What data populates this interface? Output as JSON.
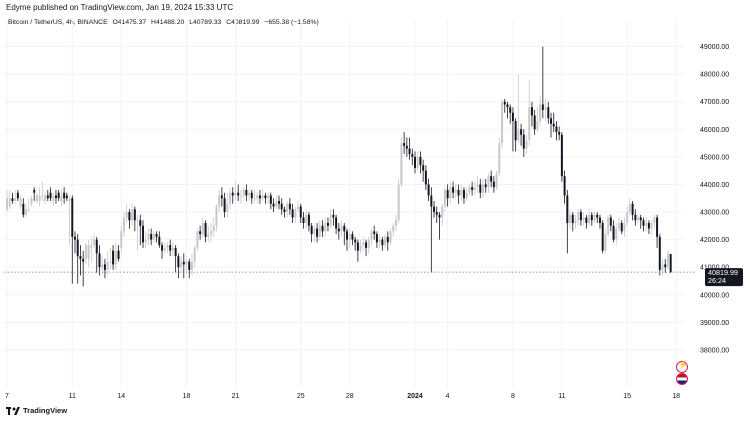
{
  "header": {
    "published": "Edyme published on TradingView.com, Jan 19, 2024 15:33 UTC"
  },
  "legend": {
    "symbol": "Bitcoin / TetherUS, 4h, BINANCE",
    "open": "O41475.37",
    "high": "H41488.20",
    "low": "L40789.33",
    "close": "C40819.99",
    "change": "−655.38 (−1.58%)"
  },
  "price_tag": {
    "price": "40819.99",
    "countdown": "26:24",
    "color": "#131722"
  },
  "footer": {
    "brand": "TradingView"
  },
  "icons": [
    "tradingview-logo-icon",
    "lightning-event-icon",
    "us-flag-event-icon"
  ],
  "chart_data": {
    "type": "candlestick",
    "up_color": "#c8c8c8",
    "down_color": "#131722",
    "last_price_line_color": "#787b86",
    "ylim": [
      36800,
      49600
    ],
    "y_ticks": [
      "49000.00",
      "48000.00",
      "47000.00",
      "46000.00",
      "45000.00",
      "44000.00",
      "43000.00",
      "42000.00",
      "41000.00",
      "40000.00",
      "39000.00",
      "38000.00"
    ],
    "x_ticks": [
      "7",
      "11",
      "14",
      "18",
      "21",
      "25",
      "28",
      "2024",
      "4",
      "8",
      "11",
      "15",
      "18"
    ],
    "x_tick_index": [
      0,
      24,
      42,
      66,
      84,
      108,
      126,
      150,
      162,
      186,
      204,
      228,
      246
    ],
    "candles": [
      [
        43100,
        43500,
        43800,
        43000
      ],
      [
        43200,
        43500,
        43800,
        43100
      ],
      [
        43500,
        43400,
        43700,
        43300
      ],
      [
        43400,
        43500,
        43800,
        43300
      ],
      [
        43700,
        43500,
        43800,
        43400
      ],
      [
        43200,
        43500,
        43600,
        43100
      ],
      [
        43300,
        42900,
        43500,
        42800
      ],
      [
        42900,
        43100,
        43300,
        42800
      ],
      [
        43100,
        43100,
        43500,
        43000
      ],
      [
        43300,
        43500,
        43600,
        43200
      ],
      [
        43800,
        43700,
        43900,
        43400
      ],
      [
        43400,
        43600,
        43700,
        43300
      ],
      [
        43400,
        43600,
        43900,
        43200
      ],
      [
        43600,
        43600,
        44100,
        43400
      ],
      [
        43400,
        43600,
        43700,
        43300
      ],
      [
        43600,
        43500,
        43800,
        43400
      ],
      [
        43700,
        43500,
        43900,
        43400
      ],
      [
        43400,
        43600,
        43700,
        43200
      ],
      [
        43600,
        43500,
        43800,
        43300
      ],
      [
        43700,
        43500,
        43800,
        43400
      ],
      [
        43400,
        43600,
        43800,
        43200
      ],
      [
        43700,
        43500,
        43900,
        43300
      ],
      [
        43600,
        43500,
        43700,
        43400
      ],
      [
        43400,
        43500,
        43600,
        41800
      ],
      [
        43500,
        42100,
        43600,
        40400
      ],
      [
        42100,
        42000,
        42300,
        41500
      ],
      [
        42000,
        41400,
        42200,
        40400
      ],
      [
        41400,
        41300,
        41800,
        40700
      ],
      [
        41300,
        41200,
        41600,
        40300
      ],
      [
        41300,
        41800,
        41900,
        41100
      ],
      [
        41300,
        41800,
        42000,
        41000
      ],
      [
        41700,
        41800,
        42100,
        41200
      ],
      [
        41800,
        42000,
        42200,
        41700
      ],
      [
        42000,
        41500,
        42100,
        40800
      ],
      [
        41500,
        41000,
        41800,
        40700
      ],
      [
        41000,
        41100,
        41400,
        40700
      ],
      [
        41100,
        40900,
        41300,
        40600
      ],
      [
        40900,
        41200,
        41600,
        40700
      ],
      [
        41200,
        41200,
        41700,
        40900
      ],
      [
        41600,
        41100,
        41800,
        40900
      ],
      [
        41100,
        41600,
        41900,
        40900
      ],
      [
        41600,
        41300,
        41800,
        41200
      ],
      [
        41700,
        42300,
        42500,
        41500
      ],
      [
        42300,
        42800,
        43000,
        42100
      ],
      [
        42800,
        43000,
        43300,
        42600
      ],
      [
        43000,
        42700,
        43100,
        42400
      ],
      [
        42700,
        43100,
        43300,
        42500
      ],
      [
        43100,
        42700,
        43200,
        42300
      ],
      [
        42700,
        42700,
        42900,
        41600
      ],
      [
        42700,
        42500,
        42900,
        41800
      ],
      [
        42500,
        41900,
        42700,
        41700
      ],
      [
        41900,
        42000,
        42300,
        41700
      ],
      [
        42000,
        42200,
        42400,
        41800
      ],
      [
        42200,
        42000,
        42400,
        41800
      ],
      [
        42000,
        42200,
        42300,
        41900
      ],
      [
        42200,
        42100,
        42300,
        41900
      ],
      [
        42100,
        41800,
        42300,
        41700
      ],
      [
        41800,
        41600,
        41900,
        41300
      ],
      [
        41600,
        41700,
        41900,
        41500
      ],
      [
        41700,
        41800,
        41900,
        41500
      ],
      [
        41800,
        41600,
        42000,
        41400
      ],
      [
        41600,
        41700,
        41900,
        41400
      ],
      [
        41700,
        41400,
        41800,
        40800
      ],
      [
        41400,
        41000,
        41500,
        40600
      ],
      [
        41000,
        41200,
        41400,
        40800
      ],
      [
        41200,
        41100,
        41500,
        40600
      ],
      [
        41100,
        41200,
        41300,
        40800
      ],
      [
        41200,
        40900,
        41300,
        40600
      ],
      [
        40900,
        41200,
        41500,
        40700
      ],
      [
        41200,
        41700,
        41800,
        41000
      ],
      [
        41700,
        42300,
        42400,
        41600
      ],
      [
        42300,
        42200,
        42500,
        42000
      ],
      [
        42200,
        42600,
        42800,
        42100
      ],
      [
        42600,
        42100,
        42700,
        41900
      ],
      [
        42100,
        42200,
        42500,
        41900
      ],
      [
        42200,
        42300,
        42600,
        41900
      ],
      [
        42300,
        42500,
        42800,
        42100
      ],
      [
        42500,
        43200,
        43300,
        42300
      ],
      [
        43200,
        43600,
        43800,
        43000
      ],
      [
        43600,
        43500,
        43900,
        43200
      ],
      [
        43500,
        43000,
        43700,
        42800
      ],
      [
        43000,
        43300,
        43700,
        42800
      ],
      [
        43300,
        43700,
        43900,
        43100
      ],
      [
        43700,
        43600,
        43900,
        43300
      ],
      [
        43600,
        43700,
        44100,
        43400
      ],
      [
        43700,
        43600,
        44000,
        43400
      ],
      [
        43600,
        43600,
        43800,
        43300
      ],
      [
        43600,
        43800,
        43900,
        43500
      ],
      [
        43800,
        43600,
        44000,
        43400
      ],
      [
        43600,
        43700,
        43800,
        43400
      ],
      [
        43700,
        43500,
        43800,
        43300
      ],
      [
        43500,
        43500,
        43800,
        43300
      ],
      [
        43500,
        43600,
        43700,
        43300
      ],
      [
        43600,
        43500,
        43800,
        43300
      ],
      [
        43500,
        43600,
        43800,
        43400
      ],
      [
        43600,
        43500,
        43700,
        43300
      ],
      [
        43500,
        43600,
        43700,
        43300
      ],
      [
        43600,
        43300,
        43700,
        43100
      ],
      [
        43300,
        43200,
        43500,
        43000
      ],
      [
        43200,
        43400,
        43600,
        43100
      ],
      [
        43400,
        43300,
        43600,
        43100
      ],
      [
        43300,
        43100,
        43500,
        42900
      ],
      [
        43100,
        43000,
        43200,
        42800
      ],
      [
        43000,
        43300,
        43400,
        42800
      ],
      [
        43300,
        43100,
        43500,
        42900
      ],
      [
        43100,
        42800,
        43300,
        42600
      ],
      [
        42800,
        43100,
        43200,
        42600
      ],
      [
        43100,
        43200,
        43400,
        43000
      ],
      [
        43200,
        42800,
        43300,
        42600
      ],
      [
        42800,
        42600,
        43000,
        42400
      ],
      [
        42600,
        42900,
        43100,
        42400
      ],
      [
        42900,
        42500,
        43000,
        42300
      ],
      [
        42500,
        42200,
        42600,
        41900
      ],
      [
        42200,
        42400,
        42500,
        41900
      ],
      [
        42400,
        42100,
        42600,
        41900
      ],
      [
        42100,
        42500,
        42700,
        42000
      ],
      [
        42500,
        42300,
        42700,
        42100
      ],
      [
        42300,
        42600,
        42800,
        42100
      ],
      [
        42600,
        42500,
        42800,
        42300
      ],
      [
        42500,
        42900,
        43100,
        42400
      ],
      [
        42900,
        42800,
        43100,
        42500
      ],
      [
        42800,
        42400,
        42900,
        42200
      ],
      [
        42400,
        42300,
        42600,
        42000
      ],
      [
        42300,
        42500,
        42700,
        42100
      ],
      [
        42500,
        42300,
        42600,
        41800
      ],
      [
        42300,
        42000,
        42400,
        41600
      ],
      [
        42000,
        42200,
        42400,
        41700
      ],
      [
        42200,
        42000,
        42300,
        41800
      ],
      [
        42000,
        41900,
        42100,
        41600
      ],
      [
        41900,
        41600,
        42000,
        41200
      ],
      [
        41600,
        41800,
        42000,
        41500
      ],
      [
        41800,
        41900,
        42100,
        41600
      ],
      [
        41900,
        41700,
        42000,
        41400
      ],
      [
        41700,
        42000,
        42100,
        41500
      ],
      [
        42000,
        42300,
        42400,
        41800
      ],
      [
        42300,
        42200,
        42500,
        42000
      ],
      [
        42200,
        41900,
        42300,
        41700
      ],
      [
        41900,
        42000,
        42200,
        41700
      ],
      [
        42000,
        41800,
        42100,
        41600
      ],
      [
        41800,
        42100,
        42200,
        41700
      ],
      [
        42100,
        41900,
        42300,
        41600
      ],
      [
        41900,
        42300,
        42400,
        41800
      ],
      [
        42300,
        42500,
        42600,
        42100
      ],
      [
        42500,
        42700,
        42900,
        42300
      ],
      [
        42700,
        44000,
        44200,
        42600
      ],
      [
        44000,
        45500,
        45700,
        43900
      ],
      [
        45500,
        45400,
        45900,
        45100
      ],
      [
        45400,
        45300,
        45700,
        45000
      ],
      [
        45300,
        45100,
        45700,
        44900
      ],
      [
        45100,
        45000,
        45300,
        44700
      ],
      [
        45000,
        44600,
        45200,
        44400
      ],
      [
        44600,
        45000,
        45200,
        44500
      ],
      [
        45000,
        44700,
        45200,
        44400
      ],
      [
        44700,
        44500,
        44900,
        44100
      ],
      [
        44500,
        44000,
        44700,
        43800
      ],
      [
        44000,
        43600,
        44200,
        43400
      ],
      [
        43600,
        43200,
        43900,
        40800
      ],
      [
        43200,
        43000,
        43400,
        42800
      ],
      [
        43000,
        42900,
        43200,
        42600
      ],
      [
        42900,
        42800,
        43000,
        42000
      ],
      [
        42800,
        43200,
        43300,
        42500
      ],
      [
        43200,
        43800,
        43900,
        43000
      ],
      [
        43800,
        43500,
        44000,
        43200
      ],
      [
        43500,
        43900,
        44100,
        43300
      ],
      [
        43900,
        43700,
        44100,
        43500
      ],
      [
        43700,
        43800,
        44000,
        43500
      ],
      [
        43800,
        43600,
        44000,
        43300
      ],
      [
        43600,
        43800,
        44000,
        43400
      ],
      [
        43800,
        43500,
        43900,
        43300
      ],
      [
        43500,
        43700,
        43900,
        43400
      ],
      [
        43700,
        43900,
        44000,
        43600
      ],
      [
        43900,
        43800,
        44100,
        43600
      ],
      [
        43800,
        43900,
        44100,
        43600
      ],
      [
        43900,
        44000,
        44300,
        43700
      ],
      [
        44000,
        43700,
        44200,
        43500
      ],
      [
        43700,
        44000,
        44200,
        43500
      ],
      [
        44000,
        43900,
        44200,
        43700
      ],
      [
        43900,
        44300,
        44400,
        43700
      ],
      [
        44300,
        44100,
        44500,
        43900
      ],
      [
        44100,
        43900,
        44300,
        43700
      ],
      [
        43900,
        44400,
        44500,
        43800
      ],
      [
        44400,
        45500,
        45700,
        44300
      ],
      [
        45500,
        47000,
        47100,
        45300
      ],
      [
        47000,
        46900,
        47100,
        46600
      ],
      [
        46900,
        46800,
        47000,
        46400
      ],
      [
        46800,
        46600,
        46900,
        46200
      ],
      [
        46600,
        46300,
        46800,
        45200
      ],
      [
        46300,
        45600,
        46400,
        45200
      ],
      [
        45600,
        46000,
        48000,
        45500
      ],
      [
        46000,
        45800,
        46200,
        45400
      ],
      [
        45800,
        45300,
        46000,
        45000
      ],
      [
        45300,
        45600,
        45800,
        45100
      ],
      [
        45600,
        46800,
        47800,
        45400
      ],
      [
        46800,
        46500,
        47000,
        46100
      ],
      [
        46500,
        46000,
        46700,
        45800
      ],
      [
        46000,
        46300,
        46800,
        45900
      ],
      [
        46300,
        46900,
        47200,
        46100
      ],
      [
        46900,
        46700,
        49000,
        46400
      ],
      [
        46700,
        46800,
        47100,
        46300
      ],
      [
        46800,
        46400,
        47000,
        46200
      ],
      [
        46400,
        46200,
        46600,
        45700
      ],
      [
        46200,
        46100,
        46600,
        45900
      ],
      [
        46100,
        45900,
        46300,
        45600
      ],
      [
        45900,
        45800,
        46100,
        45600
      ],
      [
        45800,
        44300,
        45900,
        44100
      ],
      [
        44300,
        43600,
        44500,
        43300
      ],
      [
        43600,
        42600,
        43800,
        41500
      ],
      [
        42600,
        42900,
        43100,
        42400
      ],
      [
        42900,
        42600,
        43000,
        42300
      ],
      [
        42600,
        42700,
        42900,
        42400
      ],
      [
        42700,
        43000,
        43100,
        42500
      ],
      [
        43000,
        42700,
        43100,
        42500
      ],
      [
        42700,
        42800,
        43000,
        42500
      ],
      [
        42800,
        42600,
        42900,
        42400
      ],
      [
        42600,
        42900,
        43100,
        42500
      ],
      [
        42900,
        42700,
        43000,
        42500
      ],
      [
        42700,
        42900,
        43000,
        42600
      ],
      [
        42900,
        42800,
        43000,
        42600
      ],
      [
        42800,
        42600,
        42900,
        42400
      ],
      [
        42600,
        41600,
        42700,
        41500
      ],
      [
        41600,
        42200,
        42400,
        41500
      ],
      [
        42200,
        42800,
        42900,
        42100
      ],
      [
        42800,
        42500,
        42900,
        42300
      ],
      [
        42500,
        42000,
        42700,
        41900
      ],
      [
        42000,
        42400,
        42600,
        41800
      ],
      [
        42400,
        42600,
        42800,
        42300
      ],
      [
        42600,
        42300,
        42700,
        42200
      ],
      [
        42300,
        42600,
        42800,
        42100
      ],
      [
        42600,
        43000,
        43200,
        42500
      ],
      [
        43000,
        43300,
        43500,
        42900
      ],
      [
        43300,
        42900,
        43400,
        42700
      ],
      [
        42900,
        42700,
        43100,
        42500
      ],
      [
        42700,
        42800,
        42900,
        42600
      ],
      [
        42800,
        42700,
        42900,
        42400
      ],
      [
        42700,
        42500,
        42800,
        42300
      ],
      [
        42500,
        42600,
        42800,
        42300
      ],
      [
        42600,
        42400,
        42700,
        42200
      ],
      [
        42400,
        42600,
        42700,
        42200
      ],
      [
        42600,
        42800,
        42900,
        42400
      ],
      [
        42800,
        42100,
        42900,
        41700
      ],
      [
        42100,
        40900,
        42200,
        40700
      ],
      [
        40900,
        41100,
        41300,
        40700
      ],
      [
        41100,
        41000,
        41300,
        40800
      ],
      [
        41000,
        41500,
        41600,
        40900
      ],
      [
        41475,
        40820,
        41488,
        40789
      ]
    ]
  }
}
